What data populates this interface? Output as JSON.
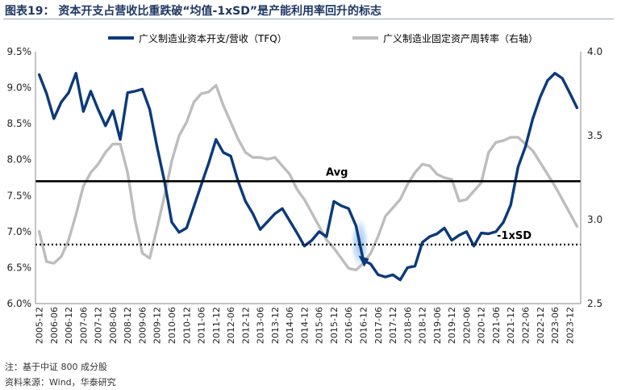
{
  "title": "图表19：  资本开支占营收比重跌破“均值-1xSD”是产能利用率回升的标志",
  "note": "注：基于中证 800 成分股",
  "source": "资料来源：Wind，华泰研究",
  "colors": {
    "capex": "#0b3a7a",
    "turnover": "#bdbdbd",
    "highlight": "#7fb2e5",
    "title": "#1f3864"
  },
  "chart_data": {
    "type": "line",
    "legend_position": "top",
    "grid": false,
    "x": [
      "2005-12",
      "2006-03",
      "2006-06",
      "2006-09",
      "2006-12",
      "2007-03",
      "2007-06",
      "2007-09",
      "2007-12",
      "2008-03",
      "2008-06",
      "2008-09",
      "2008-12",
      "2009-03",
      "2009-06",
      "2009-09",
      "2009-12",
      "2010-03",
      "2010-06",
      "2010-09",
      "2010-12",
      "2011-03",
      "2011-06",
      "2011-09",
      "2011-12",
      "2012-03",
      "2012-06",
      "2012-09",
      "2012-12",
      "2013-03",
      "2013-06",
      "2013-09",
      "2013-12",
      "2014-03",
      "2014-06",
      "2014-09",
      "2014-12",
      "2015-03",
      "2015-06",
      "2015-09",
      "2015-12",
      "2016-03",
      "2016-06",
      "2016-09",
      "2016-12",
      "2017-03",
      "2017-06",
      "2017-09",
      "2017-12",
      "2018-03",
      "2018-06",
      "2018-09",
      "2018-12",
      "2019-03",
      "2019-06",
      "2019-09",
      "2019-12",
      "2020-03",
      "2020-06",
      "2020-09",
      "2020-12",
      "2021-03",
      "2021-06",
      "2021-09",
      "2021-12",
      "2022-03",
      "2022-06",
      "2022-09",
      "2022-12",
      "2023-03",
      "2023-06",
      "2023-09",
      "2023-12",
      "2024-03"
    ],
    "x_tick_labels": [
      "2005-12",
      "2006-06",
      "2006-12",
      "2007-06",
      "2007-12",
      "2008-06",
      "2008-12",
      "2009-06",
      "2009-12",
      "2010-06",
      "2010-12",
      "2011-06",
      "2011-12",
      "2012-06",
      "2012-12",
      "2013-06",
      "2013-12",
      "2014-06",
      "2014-12",
      "2015-06",
      "2015-12",
      "2016-06",
      "2016-12",
      "2017-06",
      "2017-12",
      "2018-06",
      "2018-12",
      "2019-06",
      "2019-12",
      "2020-06",
      "2020-12",
      "2021-06",
      "2021-12",
      "2022-06",
      "2022-12",
      "2023-06",
      "2023-12"
    ],
    "y_left": {
      "min": 6.0,
      "max": 9.5,
      "step": 0.5,
      "tick_labels": [
        "6.0%",
        "6.5%",
        "7.0%",
        "7.5%",
        "8.0%",
        "8.5%",
        "9.0%",
        "9.5%"
      ]
    },
    "y_right": {
      "min": 2.5,
      "max": 4.0,
      "step": 0.5,
      "tick_labels": [
        "2.5",
        "3.0",
        "3.5",
        "4.0"
      ]
    },
    "series": [
      {
        "name": "广义制造业资本开支/营收（TFQ）",
        "axis": "left",
        "values": [
          9.18,
          8.92,
          8.57,
          8.8,
          8.93,
          9.2,
          8.67,
          8.95,
          8.7,
          8.47,
          8.68,
          8.28,
          8.93,
          8.95,
          8.98,
          8.7,
          8.18,
          7.7,
          7.13,
          6.99,
          7.05,
          7.35,
          7.65,
          7.95,
          8.28,
          8.1,
          8.05,
          7.7,
          7.42,
          7.25,
          7.03,
          7.14,
          7.25,
          7.32,
          7.15,
          6.98,
          6.8,
          6.88,
          7.0,
          6.93,
          7.42,
          7.36,
          7.32,
          7.08,
          6.6,
          6.55,
          6.4,
          6.37,
          6.4,
          6.33,
          6.5,
          6.52,
          6.85,
          6.93,
          6.97,
          7.05,
          6.88,
          6.95,
          7.0,
          6.8,
          6.98,
          6.97,
          7.0,
          7.13,
          7.37,
          7.9,
          8.18,
          8.57,
          8.87,
          9.1,
          9.2,
          9.13,
          8.93,
          8.72
        ]
      },
      {
        "name": "广义制造业固定资产周转率（右轴）",
        "axis": "right",
        "values": [
          2.93,
          2.75,
          2.74,
          2.78,
          2.88,
          3.03,
          3.2,
          3.28,
          3.33,
          3.4,
          3.45,
          3.45,
          3.28,
          3.0,
          2.8,
          2.77,
          2.95,
          3.14,
          3.35,
          3.5,
          3.58,
          3.7,
          3.75,
          3.76,
          3.8,
          3.68,
          3.58,
          3.48,
          3.4,
          3.37,
          3.37,
          3.36,
          3.37,
          3.32,
          3.27,
          3.18,
          3.12,
          3.04,
          2.96,
          2.88,
          2.83,
          2.77,
          2.71,
          2.7,
          2.74,
          2.8,
          2.9,
          3.02,
          3.07,
          3.12,
          3.21,
          3.28,
          3.33,
          3.32,
          3.27,
          3.25,
          3.24,
          3.11,
          3.12,
          3.17,
          3.22,
          3.4,
          3.46,
          3.47,
          3.49,
          3.49,
          3.45,
          3.41,
          3.34,
          3.27,
          3.2,
          3.12,
          3.04,
          2.96
        ]
      }
    ],
    "reference_lines": [
      {
        "label": "Avg",
        "value": 7.7,
        "style": "solid",
        "axis": "left"
      },
      {
        "label": "-1xSD",
        "value": 6.82,
        "style": "dotted",
        "axis": "left"
      }
    ],
    "highlight": {
      "from": "2016-09",
      "to": "2016-12"
    }
  }
}
